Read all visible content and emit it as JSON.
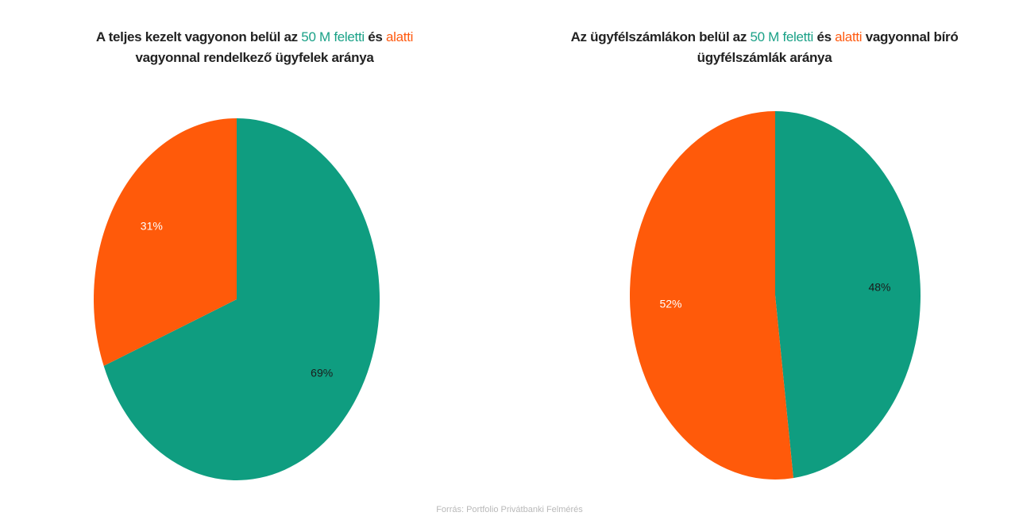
{
  "colors": {
    "above": "#0f9d80",
    "below": "#ff5a0a",
    "text_dark": "#222222",
    "label_on_green": "#1b1b1b",
    "label_on_orange": "#ffffff"
  },
  "charts": [
    {
      "title": {
        "pre": "A teljes kezelt vagyonon belül az ",
        "green": "50 M feletti",
        "mid": " és ",
        "orange": "alatti",
        "line2": "vagyonnal rendelkező ügyfelek aránya"
      }
    },
    {
      "title": {
        "pre": "Az ügyfélszámlákon belül az ",
        "green": "50 M feletti",
        "mid": " és ",
        "orange": "alatti",
        "post": " vagyonnal bíró",
        "line2": "ügyfélszámlák aránya"
      }
    }
  ],
  "chart_data": [
    {
      "type": "pie",
      "categories": [
        "50 M feletti",
        "alatti"
      ],
      "values": [
        69,
        31
      ],
      "labels": [
        "69%",
        "31%"
      ],
      "colors": [
        "#0f9d80",
        "#ff5a0a"
      ]
    },
    {
      "type": "pie",
      "categories": [
        "50 M feletti",
        "alatti"
      ],
      "values": [
        48,
        52
      ],
      "labels": [
        "48%",
        "52%"
      ],
      "colors": [
        "#0f9d80",
        "#ff5a0a"
      ]
    }
  ],
  "source": "Forrás: Portfolio Privátbanki Felmérés"
}
